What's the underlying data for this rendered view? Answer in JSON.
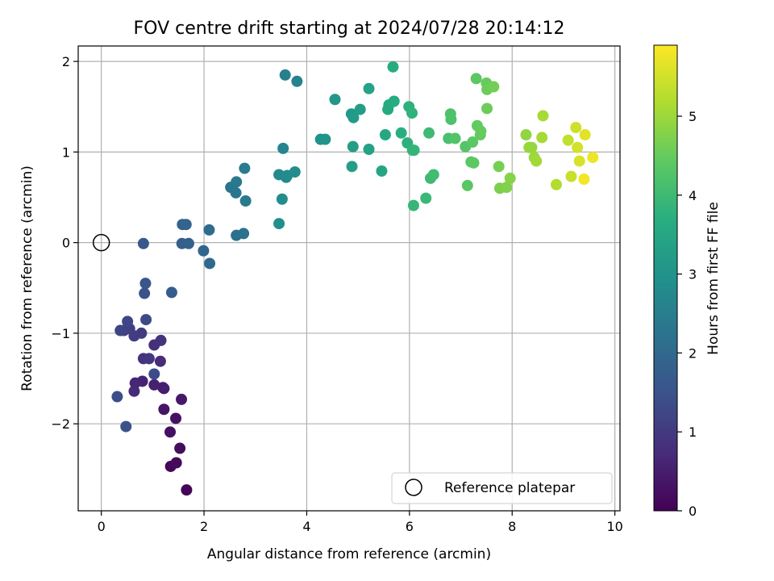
{
  "chart_data": {
    "type": "scatter",
    "title": "FOV centre drift starting at 2024/07/28 20:14:12",
    "xlabel": "Angular distance from reference (arcmin)",
    "ylabel": "Rotation from reference (arcmin)",
    "xlim": [
      -0.45,
      10.1
    ],
    "ylim": [
      -2.96,
      2.17
    ],
    "x_ticks": [
      0,
      2,
      4,
      6,
      8,
      10
    ],
    "y_ticks": [
      -2,
      -1,
      0,
      1,
      2
    ],
    "grid": true,
    "colormap": "viridis",
    "colorbar": {
      "label": "Hours from first FF file",
      "range": [
        0,
        5.9
      ],
      "ticks": [
        0,
        1,
        2,
        3,
        4,
        5
      ]
    },
    "legend": {
      "placement": "lower-right",
      "entries": [
        "Reference platepar"
      ]
    },
    "reference_point": {
      "x": 0,
      "y": 0
    },
    "points": [
      {
        "x": 1.66,
        "y": -2.73,
        "t": 0.05
      },
      {
        "x": 1.35,
        "y": -2.47,
        "t": 0.1
      },
      {
        "x": 1.46,
        "y": -2.43,
        "t": 0.15
      },
      {
        "x": 1.53,
        "y": -2.27,
        "t": 0.2
      },
      {
        "x": 1.34,
        "y": -2.09,
        "t": 0.25
      },
      {
        "x": 1.45,
        "y": -1.94,
        "t": 0.3
      },
      {
        "x": 1.22,
        "y": -1.84,
        "t": 0.35
      },
      {
        "x": 1.56,
        "y": -1.73,
        "t": 0.4
      },
      {
        "x": 1.22,
        "y": -1.61,
        "t": 0.45
      },
      {
        "x": 1.2,
        "y": -1.6,
        "t": 0.5
      },
      {
        "x": 1.03,
        "y": -1.57,
        "t": 0.55
      },
      {
        "x": 0.8,
        "y": -1.53,
        "t": 0.6
      },
      {
        "x": 0.66,
        "y": -1.55,
        "t": 0.65
      },
      {
        "x": 0.64,
        "y": -1.64,
        "t": 0.7
      },
      {
        "x": 1.15,
        "y": -1.31,
        "t": 0.75
      },
      {
        "x": 1.03,
        "y": -1.13,
        "t": 0.8
      },
      {
        "x": 1.16,
        "y": -1.08,
        "t": 0.85
      },
      {
        "x": 0.82,
        "y": -1.28,
        "t": 0.9
      },
      {
        "x": 0.93,
        "y": -1.28,
        "t": 0.95
      },
      {
        "x": 0.78,
        "y": -1.0,
        "t": 1.0
      },
      {
        "x": 0.64,
        "y": -1.03,
        "t": 1.05
      },
      {
        "x": 0.55,
        "y": -0.95,
        "t": 1.1
      },
      {
        "x": 0.44,
        "y": -0.97,
        "t": 1.15
      },
      {
        "x": 0.37,
        "y": -0.97,
        "t": 1.2
      },
      {
        "x": 0.51,
        "y": -0.87,
        "t": 1.25
      },
      {
        "x": 0.87,
        "y": -0.85,
        "t": 1.3
      },
      {
        "x": 1.03,
        "y": -1.45,
        "t": 1.35
      },
      {
        "x": 0.31,
        "y": -1.7,
        "t": 1.4
      },
      {
        "x": 0.48,
        "y": -2.03,
        "t": 1.45
      },
      {
        "x": 0.84,
        "y": -0.56,
        "t": 1.5
      },
      {
        "x": 0.86,
        "y": -0.45,
        "t": 1.55
      },
      {
        "x": 0.82,
        "y": -0.01,
        "t": 1.6
      },
      {
        "x": 1.37,
        "y": -0.55,
        "t": 1.7
      },
      {
        "x": 1.57,
        "y": -0.01,
        "t": 1.75
      },
      {
        "x": 1.7,
        "y": -0.01,
        "t": 1.8
      },
      {
        "x": 1.58,
        "y": 0.2,
        "t": 1.85
      },
      {
        "x": 1.65,
        "y": 0.2,
        "t": 1.9
      },
      {
        "x": 1.99,
        "y": -0.09,
        "t": 1.95
      },
      {
        "x": 2.11,
        "y": -0.23,
        "t": 2.0
      },
      {
        "x": 2.1,
        "y": 0.14,
        "t": 2.05
      },
      {
        "x": 2.63,
        "y": 0.08,
        "t": 2.15
      },
      {
        "x": 2.77,
        "y": 0.1,
        "t": 2.2
      },
      {
        "x": 2.52,
        "y": 0.61,
        "t": 2.25
      },
      {
        "x": 2.62,
        "y": 0.55,
        "t": 2.3
      },
      {
        "x": 2.63,
        "y": 0.67,
        "t": 2.35
      },
      {
        "x": 2.81,
        "y": 0.46,
        "t": 2.4
      },
      {
        "x": 2.79,
        "y": 0.82,
        "t": 2.45
      },
      {
        "x": 3.58,
        "y": 1.85,
        "t": 2.55
      },
      {
        "x": 3.81,
        "y": 1.78,
        "t": 2.6
      },
      {
        "x": 3.54,
        "y": 1.04,
        "t": 2.65
      },
      {
        "x": 3.46,
        "y": 0.75,
        "t": 2.75
      },
      {
        "x": 3.6,
        "y": 0.72,
        "t": 2.8
      },
      {
        "x": 3.62,
        "y": 0.74,
        "t": 2.8
      },
      {
        "x": 3.77,
        "y": 0.78,
        "t": 2.85
      },
      {
        "x": 3.52,
        "y": 0.48,
        "t": 2.85
      },
      {
        "x": 3.46,
        "y": 0.21,
        "t": 2.9
      },
      {
        "x": 4.27,
        "y": 1.14,
        "t": 3.0
      },
      {
        "x": 4.36,
        "y": 1.14,
        "t": 3.05
      },
      {
        "x": 4.55,
        "y": 1.58,
        "t": 3.1
      },
      {
        "x": 4.87,
        "y": 1.42,
        "t": 3.15
      },
      {
        "x": 4.91,
        "y": 1.38,
        "t": 3.2
      },
      {
        "x": 5.04,
        "y": 1.47,
        "t": 3.25
      },
      {
        "x": 4.9,
        "y": 1.06,
        "t": 3.25
      },
      {
        "x": 4.88,
        "y": 0.84,
        "t": 3.3
      },
      {
        "x": 5.21,
        "y": 1.03,
        "t": 3.35
      },
      {
        "x": 5.21,
        "y": 1.7,
        "t": 3.4
      },
      {
        "x": 5.46,
        "y": 0.79,
        "t": 3.45
      },
      {
        "x": 5.53,
        "y": 1.19,
        "t": 3.5
      },
      {
        "x": 5.58,
        "y": 1.47,
        "t": 3.55
      },
      {
        "x": 5.6,
        "y": 1.52,
        "t": 3.55
      },
      {
        "x": 5.7,
        "y": 1.56,
        "t": 3.6
      },
      {
        "x": 5.68,
        "y": 1.94,
        "t": 3.6
      },
      {
        "x": 5.84,
        "y": 1.21,
        "t": 3.7
      },
      {
        "x": 5.96,
        "y": 1.1,
        "t": 3.75
      },
      {
        "x": 5.99,
        "y": 1.5,
        "t": 3.75
      },
      {
        "x": 6.05,
        "y": 1.43,
        "t": 3.8
      },
      {
        "x": 6.06,
        "y": 1.02,
        "t": 3.85
      },
      {
        "x": 6.09,
        "y": 1.02,
        "t": 3.85
      },
      {
        "x": 6.08,
        "y": 0.41,
        "t": 3.9
      },
      {
        "x": 6.32,
        "y": 0.49,
        "t": 3.95
      },
      {
        "x": 6.38,
        "y": 1.21,
        "t": 4.0
      },
      {
        "x": 6.41,
        "y": 0.71,
        "t": 4.0
      },
      {
        "x": 6.47,
        "y": 0.75,
        "t": 4.05
      },
      {
        "x": 6.76,
        "y": 1.15,
        "t": 4.15
      },
      {
        "x": 6.8,
        "y": 1.42,
        "t": 4.2
      },
      {
        "x": 6.81,
        "y": 1.36,
        "t": 4.2
      },
      {
        "x": 6.89,
        "y": 1.15,
        "t": 4.25
      },
      {
        "x": 7.09,
        "y": 1.06,
        "t": 4.3
      },
      {
        "x": 7.13,
        "y": 0.63,
        "t": 4.35
      },
      {
        "x": 7.2,
        "y": 0.89,
        "t": 4.35
      },
      {
        "x": 7.25,
        "y": 0.88,
        "t": 4.4
      },
      {
        "x": 7.23,
        "y": 1.11,
        "t": 4.4
      },
      {
        "x": 7.3,
        "y": 1.81,
        "t": 4.4
      },
      {
        "x": 7.32,
        "y": 1.29,
        "t": 4.45
      },
      {
        "x": 7.38,
        "y": 1.19,
        "t": 4.45
      },
      {
        "x": 7.39,
        "y": 1.23,
        "t": 4.5
      },
      {
        "x": 7.5,
        "y": 1.76,
        "t": 4.5
      },
      {
        "x": 7.51,
        "y": 1.69,
        "t": 4.55
      },
      {
        "x": 7.51,
        "y": 1.48,
        "t": 4.55
      },
      {
        "x": 7.64,
        "y": 1.72,
        "t": 4.6
      },
      {
        "x": 7.74,
        "y": 0.84,
        "t": 4.65
      },
      {
        "x": 7.76,
        "y": 0.6,
        "t": 4.7
      },
      {
        "x": 7.89,
        "y": 0.61,
        "t": 4.75
      },
      {
        "x": 7.96,
        "y": 0.71,
        "t": 4.8
      },
      {
        "x": 8.27,
        "y": 1.19,
        "t": 4.9
      },
      {
        "x": 8.33,
        "y": 1.05,
        "t": 4.95
      },
      {
        "x": 8.38,
        "y": 1.05,
        "t": 4.95
      },
      {
        "x": 8.43,
        "y": 0.94,
        "t": 5.0
      },
      {
        "x": 8.47,
        "y": 0.9,
        "t": 5.05
      },
      {
        "x": 8.58,
        "y": 1.16,
        "t": 5.1
      },
      {
        "x": 8.6,
        "y": 1.4,
        "t": 5.1
      },
      {
        "x": 8.86,
        "y": 0.64,
        "t": 5.2
      },
      {
        "x": 9.09,
        "y": 1.13,
        "t": 5.35
      },
      {
        "x": 9.15,
        "y": 0.73,
        "t": 5.4
      },
      {
        "x": 9.24,
        "y": 1.27,
        "t": 5.45
      },
      {
        "x": 9.27,
        "y": 1.05,
        "t": 5.5
      },
      {
        "x": 9.31,
        "y": 0.9,
        "t": 5.55
      },
      {
        "x": 9.42,
        "y": 1.19,
        "t": 5.65
      },
      {
        "x": 9.4,
        "y": 0.7,
        "t": 5.8
      },
      {
        "x": 9.57,
        "y": 0.94,
        "t": 5.75
      }
    ]
  }
}
